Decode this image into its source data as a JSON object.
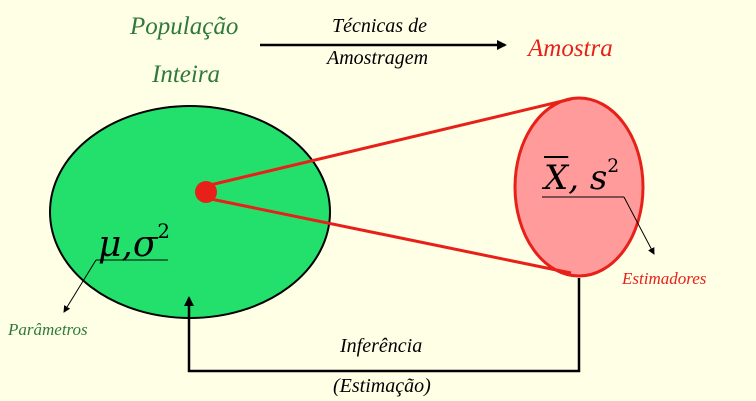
{
  "colors": {
    "background": "#ffffe6",
    "population_fill": "#22e06b",
    "sample_fill": "#ff9b9b",
    "sample_stroke": "#e8201a",
    "cone": "#e8201a",
    "green_text": "#2f7a3b",
    "red_text": "#e8201a",
    "ink": "#000000"
  },
  "labels": {
    "populacao": "População",
    "inteira": "Inteira",
    "tecnicas_line1": "Técnicas de",
    "tecnicas_line2": "Amostragem",
    "amostra": "Amostra",
    "parametros": "Parâmetros",
    "estimadores": "Estimadores",
    "inferencia": "Inferência",
    "estimacao": "(Estimação)"
  },
  "math": {
    "population_params": {
      "symbols": "μ,σ",
      "exponent": "2"
    },
    "sample_stats": {
      "bar_symbol": "X",
      "rest": ", s",
      "exponent": "2"
    }
  }
}
